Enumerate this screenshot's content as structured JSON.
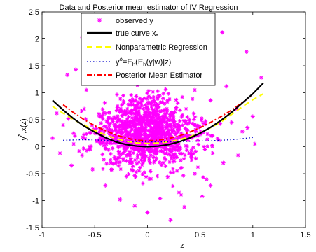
{
  "chart_data": {
    "type": "scatter",
    "title": "Data and Posterior mean estimator of IV Regression",
    "xlabel": "z",
    "ylabel_main": "y",
    "ylabel_sup": "δ",
    "ylabel_tail": ",x(z)",
    "xlim": [
      -1,
      1.5
    ],
    "ylim": [
      -1.5,
      2.5
    ],
    "xticks": [
      "-1",
      "-0.5",
      "0",
      "0.5",
      "1",
      "1.5"
    ],
    "xtick_values": [
      -1,
      -0.5,
      0,
      0.5,
      1,
      1.5
    ],
    "yticks": [
      "-1.5",
      "-1",
      "-0.5",
      "0",
      "0.5",
      "1",
      "1.5",
      "2",
      "2.5"
    ],
    "ytick_values": [
      -1.5,
      -1,
      -0.5,
      0,
      0.5,
      1,
      1.5,
      2,
      2.5
    ],
    "grid": false,
    "legend_position": "top-center",
    "scatter_points": [
      [
        -0.62,
        2.02
      ],
      [
        -0.44,
        1.86
      ],
      [
        0.71,
        2.12
      ],
      [
        -0.31,
        1.97
      ],
      [
        0.22,
        1.93
      ],
      [
        0.48,
        1.87
      ],
      [
        -0.76,
        1.33
      ],
      [
        -0.68,
        1.43
      ],
      [
        -0.1,
        1.62
      ],
      [
        0.62,
        1.5
      ],
      [
        0.94,
        1.76
      ],
      [
        1.08,
        1.28
      ],
      [
        -0.83,
        -0.12
      ],
      [
        -0.75,
        0.52
      ],
      [
        -0.7,
        0.25
      ],
      [
        -0.58,
        1.05
      ],
      [
        -0.5,
        1.25
      ],
      [
        -0.4,
        0.62
      ],
      [
        -0.35,
        1.2
      ],
      [
        -0.25,
        1.35
      ],
      [
        0.1,
        1.28
      ],
      [
        0.3,
        1.22
      ],
      [
        0.45,
        1.05
      ],
      [
        0.6,
        0.86
      ],
      [
        0.75,
        1.12
      ],
      [
        0.85,
        0.7
      ],
      [
        0.9,
        0.28
      ],
      [
        0.86,
        -0.16
      ],
      [
        0.72,
        -0.3
      ],
      [
        0.6,
        -0.72
      ],
      [
        0.52,
        -0.92
      ],
      [
        0.35,
        -1.12
      ],
      [
        0.22,
        -1.36
      ],
      [
        0.12,
        -0.96
      ],
      [
        0.0,
        -1.22
      ],
      [
        -0.12,
        -1.1
      ],
      [
        -0.26,
        -0.98
      ],
      [
        -0.4,
        -0.72
      ],
      [
        -0.52,
        -0.42
      ],
      [
        -0.62,
        -0.16
      ],
      [
        -0.7,
        0.05
      ],
      [
        -0.8,
        0.4
      ],
      [
        1.0,
        0.56
      ],
      [
        1.02,
        0.05
      ],
      [
        0.95,
        0.35
      ],
      [
        -0.9,
        0.16
      ],
      [
        -0.86,
        0.62
      ],
      [
        0.45,
        -0.5
      ],
      [
        0.3,
        -0.85
      ],
      [
        -0.2,
        -0.55
      ],
      [
        -0.05,
        0.85
      ],
      [
        0.18,
        0.68
      ],
      [
        -0.3,
        0.35
      ],
      [
        0.05,
        0.45
      ],
      [
        0.38,
        0.3
      ],
      [
        -0.45,
        0.15
      ],
      [
        0.25,
        0.12
      ],
      [
        -0.15,
        0.12
      ],
      [
        0.55,
        0.42
      ],
      [
        -0.6,
        0.7
      ],
      [
        0.68,
        0.12
      ],
      [
        -0.55,
        -0.05
      ],
      [
        0.15,
        -0.3
      ],
      [
        -0.35,
        -0.25
      ],
      [
        0.42,
        -0.2
      ],
      [
        -0.08,
        -0.45
      ],
      [
        0.62,
        -0.12
      ],
      [
        -0.72,
        -0.35
      ],
      [
        0.8,
        0.45
      ],
      [
        0.02,
        0.2
      ]
    ],
    "series": [
      {
        "name": "observed y",
        "color": "#ff00ff",
        "style": "star-markers"
      },
      {
        "name": "true curve x",
        "color": "#000000",
        "style": "solid",
        "x": [
          -0.9,
          -0.8,
          -0.7,
          -0.6,
          -0.5,
          -0.4,
          -0.3,
          -0.2,
          -0.1,
          0.0,
          0.1,
          0.2,
          0.3,
          0.4,
          0.5,
          0.6,
          0.7,
          0.8,
          0.9,
          1.0,
          1.1
        ],
        "y": [
          0.86,
          0.68,
          0.52,
          0.38,
          0.27,
          0.17,
          0.09,
          0.04,
          0.01,
          0.0,
          0.01,
          0.04,
          0.09,
          0.16,
          0.25,
          0.36,
          0.49,
          0.64,
          0.81,
          0.98,
          1.18
        ]
      },
      {
        "name": "Nonparametric Regression",
        "color": "#ffff00",
        "style": "dashed",
        "x": [
          -0.9,
          -0.8,
          -0.7,
          -0.6,
          -0.5,
          -0.4,
          -0.3,
          -0.2,
          -0.1,
          0.0,
          0.1,
          0.2,
          0.3,
          0.4,
          0.5,
          0.6,
          0.7,
          0.8,
          0.9,
          1.0,
          1.1
        ],
        "y": [
          0.75,
          0.62,
          0.5,
          0.4,
          0.3,
          0.22,
          0.15,
          0.1,
          0.07,
          0.06,
          0.07,
          0.09,
          0.13,
          0.18,
          0.26,
          0.35,
          0.46,
          0.6,
          0.74,
          0.87,
          0.98
        ]
      },
      {
        "name": "y=E(E(y|w)|z)",
        "color": "#0000cc",
        "style": "dotted",
        "x": [
          -0.8,
          -0.6,
          -0.4,
          -0.2,
          0.0,
          0.2,
          0.4,
          0.6,
          0.8,
          1.0
        ],
        "y": [
          0.12,
          0.13,
          0.12,
          0.1,
          0.09,
          0.09,
          0.1,
          0.11,
          0.13,
          0.17
        ]
      },
      {
        "name": "Posterior Mean Estimator",
        "color": "#ff0000",
        "style": "dashdot",
        "x": [
          -0.8,
          -0.7,
          -0.6,
          -0.5,
          -0.4,
          -0.3,
          -0.2,
          -0.1,
          0.0,
          0.1,
          0.2,
          0.3,
          0.4,
          0.5,
          0.6,
          0.7,
          0.8,
          0.9,
          1.0
        ],
        "y": [
          0.78,
          0.63,
          0.5,
          0.39,
          0.3,
          0.22,
          0.16,
          0.12,
          0.11,
          0.12,
          0.15,
          0.2,
          0.27,
          0.35,
          0.45,
          0.56,
          0.68,
          0.82,
          0.96
        ]
      }
    ],
    "legend": [
      {
        "label": "observed y",
        "style": "star",
        "color": "#ff00ff"
      },
      {
        "label": "true curve x",
        "sub": "*",
        "style": "solid",
        "color": "#000000"
      },
      {
        "label": "Nonparametric Regression",
        "style": "dashed",
        "color": "#ffff00"
      },
      {
        "label_parts": [
          "y",
          "δ",
          "=E",
          "h",
          "(E",
          "h",
          "(y|w)|z)"
        ],
        "style": "dotted",
        "color": "#0000cc"
      },
      {
        "label": "Posterior Mean Estimator",
        "style": "dashdot",
        "color": "#ff0000"
      }
    ]
  }
}
